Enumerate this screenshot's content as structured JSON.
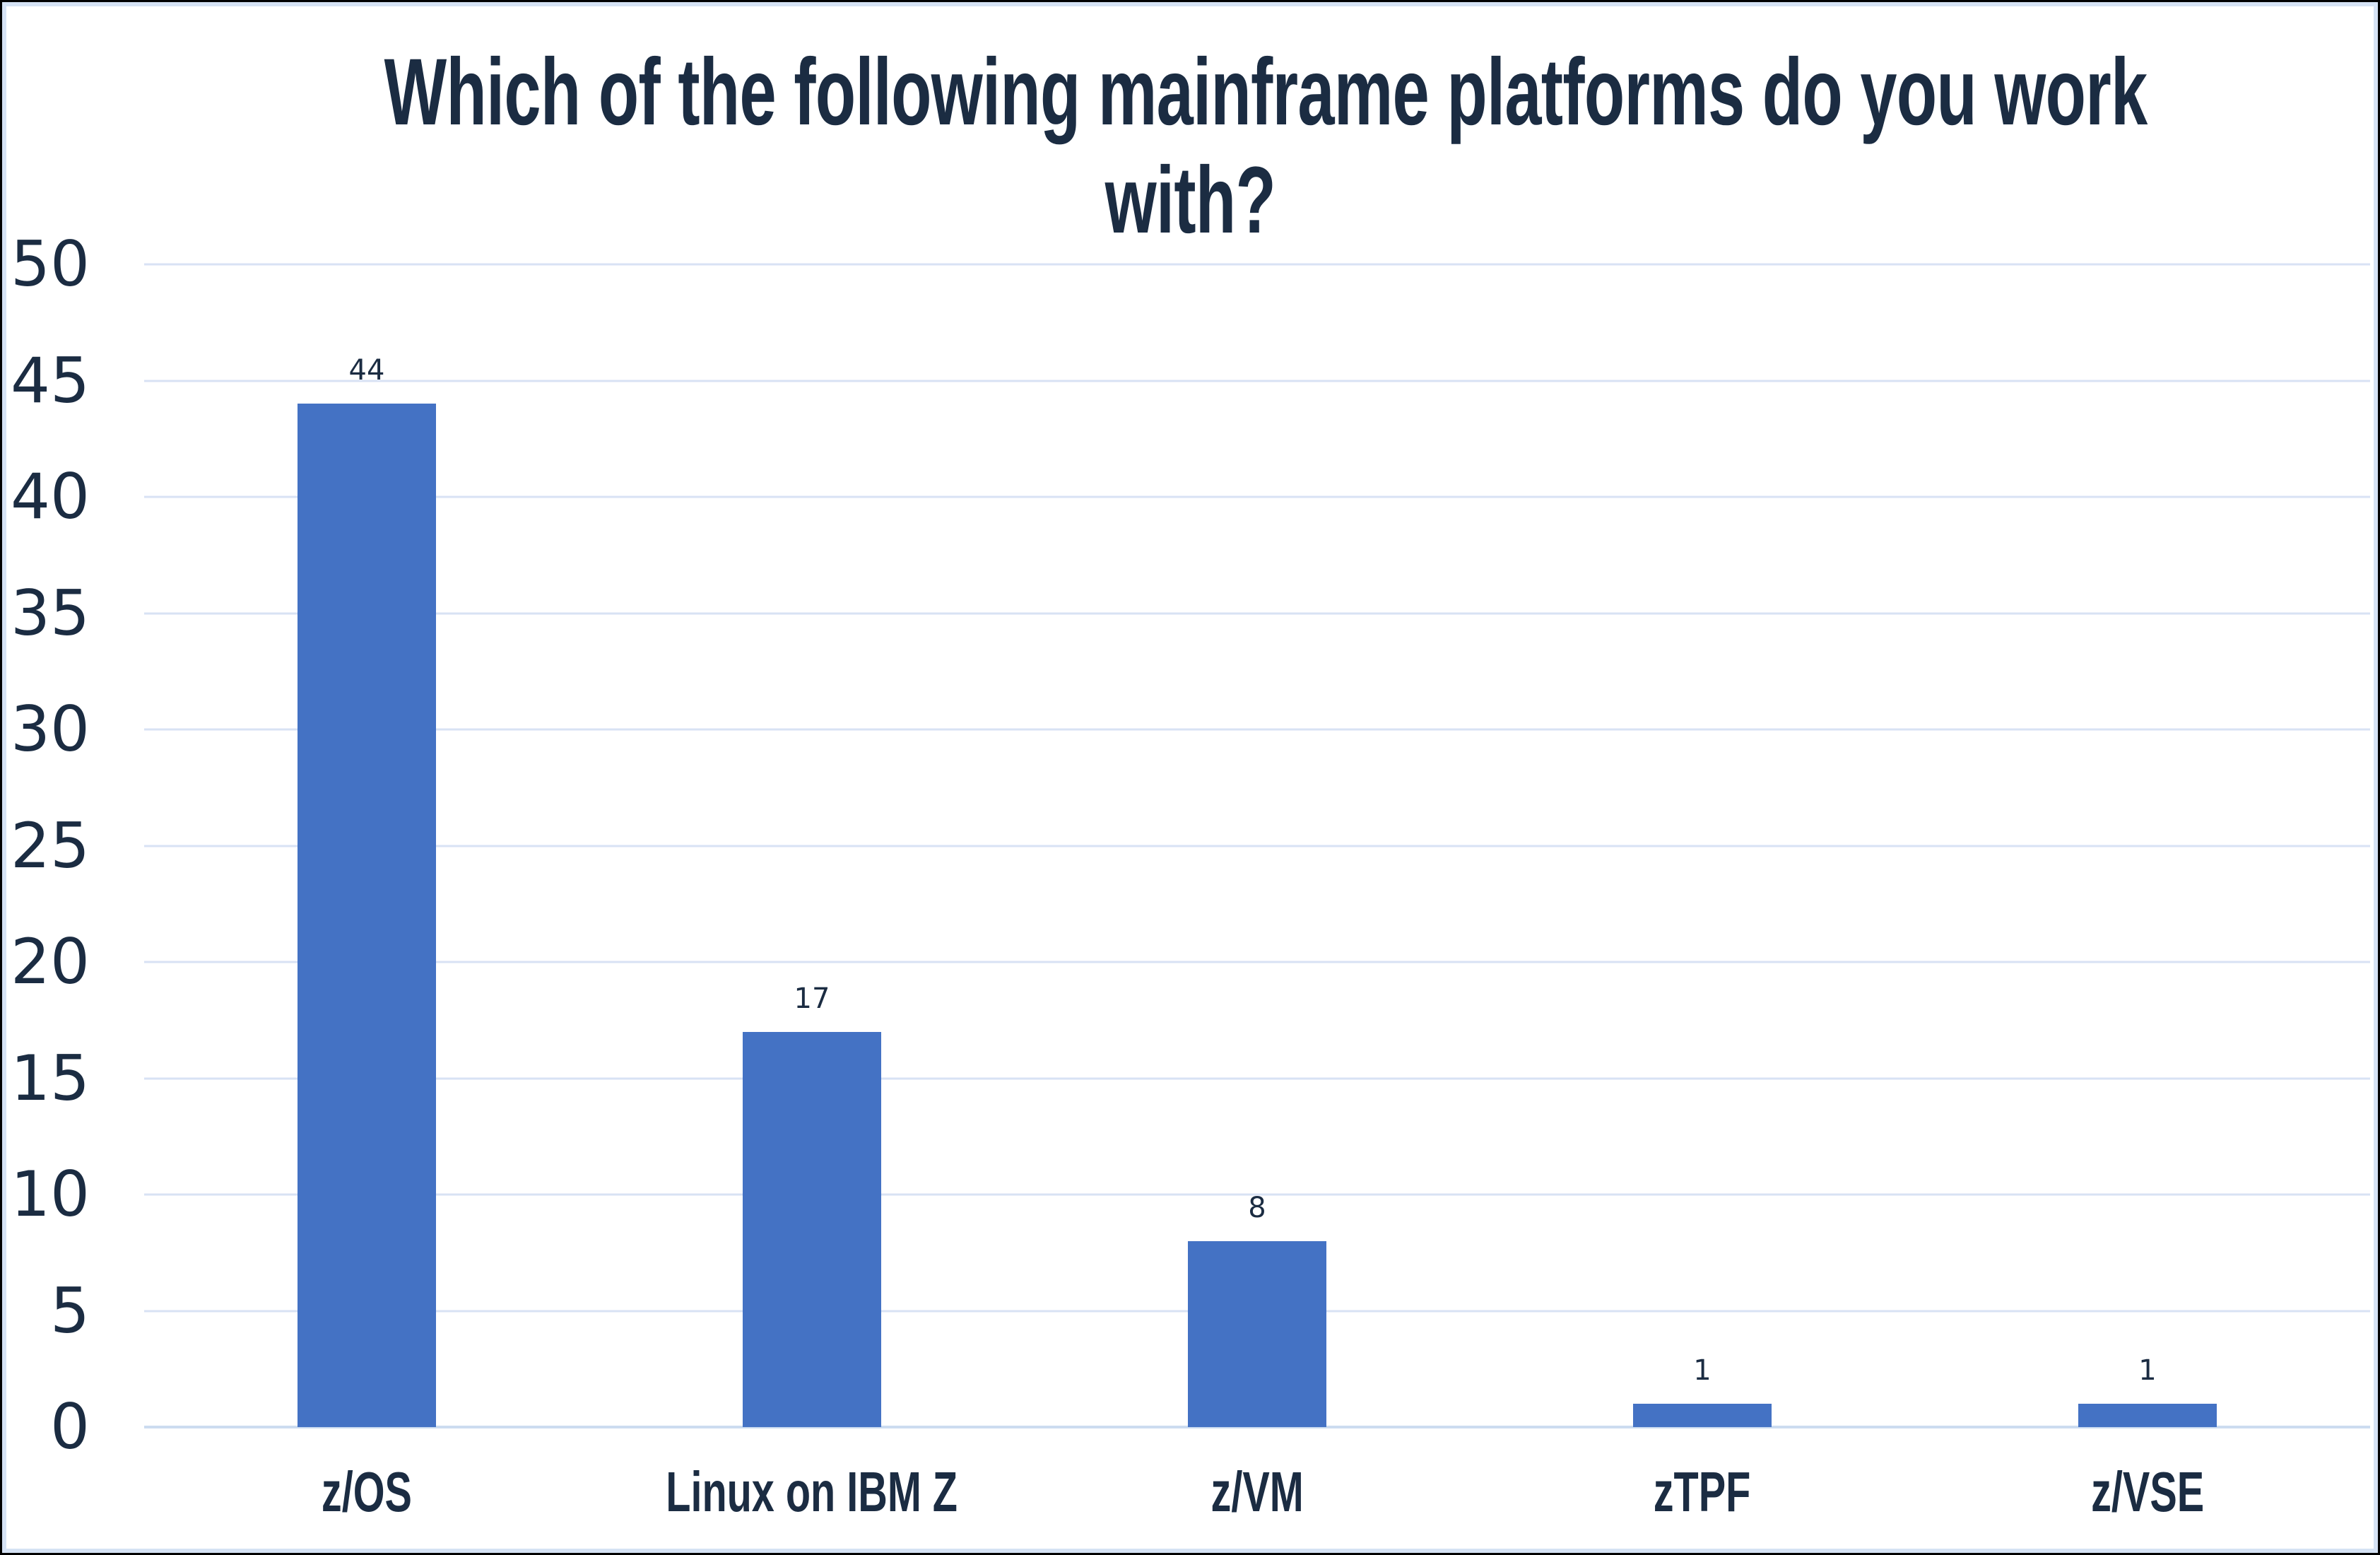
{
  "chart_data": {
    "type": "bar",
    "title": "Which of the following mainframe platforms do you work with?",
    "title_lines": [
      "Which of the following mainframe platforms do you work",
      "with?"
    ],
    "categories": [
      "z/OS",
      "Linux on IBM Z",
      "z/VM",
      "zTPF",
      "z/VSE"
    ],
    "values": [
      44,
      17,
      8,
      1,
      1
    ],
    "data_labels": [
      "44",
      "17",
      "8",
      "1",
      "1"
    ],
    "xlabel": "",
    "ylabel": "",
    "ylim": [
      0,
      50
    ],
    "yticks": [
      0,
      5,
      10,
      15,
      20,
      25,
      30,
      35,
      40,
      45,
      50
    ],
    "grid": "horizontal-only",
    "legend": "none",
    "colors": {
      "bar": "#4472C4",
      "gridline": "#D8E2F4",
      "axis_line": "#CCDCF0",
      "text": "#1B2C42",
      "chart_border": "#D5E2F4",
      "outer_border": "#000000",
      "background": "#FFFFFF"
    }
  }
}
